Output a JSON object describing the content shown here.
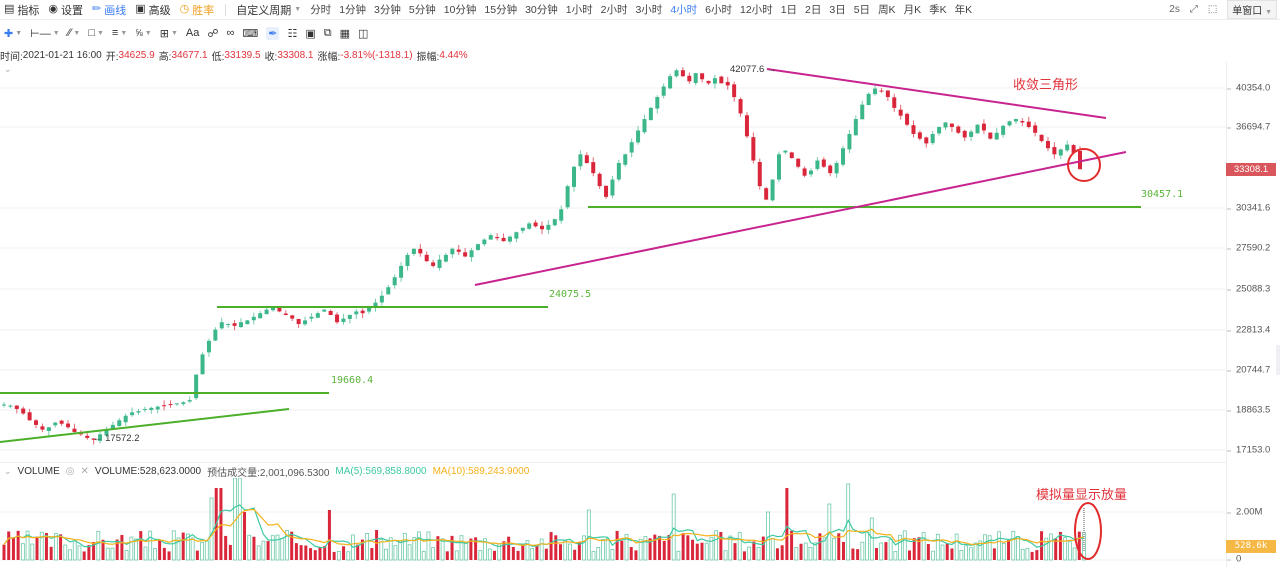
{
  "toolbar": {
    "indicators": "指标",
    "settings": "设置",
    "draw": "画线",
    "advanced": "高级",
    "winrate": "胜率",
    "custom_period": "自定义周期",
    "periods": [
      "分时",
      "1分钟",
      "3分钟",
      "5分钟",
      "10分钟",
      "15分钟",
      "30分钟",
      "1小时",
      "2小时",
      "3小时",
      "4小时",
      "6小时",
      "12小时",
      "1日",
      "2日",
      "3日",
      "5日",
      "周K",
      "月K",
      "季K",
      "年K"
    ],
    "active_period": "4小时",
    "refresh": "2s",
    "window_mode": "单窗口"
  },
  "drawing_tools": [
    "crosshair",
    "horizontal-segment",
    "trend-line",
    "rectangle",
    "parallel-lines",
    "fibonacci",
    "measure",
    "text",
    "link",
    "magnet",
    "ruler",
    "brush",
    "bar-pattern",
    "lock",
    "copy",
    "screenshot",
    "trash"
  ],
  "drawing_tools_text": {
    "text_tool": "Aa"
  },
  "info": {
    "time_label": "时间:",
    "time": "2021-01-21 16:00",
    "open_label": "开:",
    "open": "34625.9",
    "high_label": "高:",
    "high": "34677.1",
    "low_label": "低:",
    "low": "33139.5",
    "close_label": "收:",
    "close": "33308.1",
    "change_label": "涨幅:",
    "change": "-3.81%(-1318.1)",
    "amplitude_label": "振幅:",
    "amplitude": "4.44%"
  },
  "price_axis": {
    "ticks": [
      "40354.0",
      "36694.7",
      "30341.6",
      "27590.2",
      "25088.3",
      "22813.4",
      "20744.7",
      "18863.5",
      "17153.0"
    ],
    "current_price": "33308.1",
    "current_price_color": "#d9575c"
  },
  "chart_annotations": {
    "pattern_label": "收敛三角形",
    "volume_label": "模拟量显示放量",
    "high_marker": "42077.6",
    "low_marker": "17572.2",
    "levels": [
      "19660.4",
      "24075.5",
      "30457.1"
    ]
  },
  "volume": {
    "title": "VOLUME",
    "volume_text": "VOLUME:528,623.0000",
    "estimate_text": "预估成交量:2,001,096.5300",
    "ma5_text": "MA(5):569,858.8000",
    "ma10_text": "MA(10):589,243.9000",
    "axis": [
      "2.00M",
      "0"
    ],
    "current_tag": "528.6k"
  },
  "colors": {
    "up": "#3cb78a",
    "down": "#d9263a",
    "support_line": "#4caf2a",
    "triangle_line": "#c8248f",
    "annotation": "#e2333c",
    "active_blue": "#3b7cf0",
    "ma5": "#3cc9a2",
    "ma10": "#f5b11b"
  },
  "chart_data": {
    "type": "candlestick",
    "title": "BTC 4小时 K线",
    "close_path": [
      19100,
      19050,
      18900,
      18700,
      18400,
      18200,
      18000,
      18100,
      18300,
      18250,
      18100,
      17900,
      17800,
      17650,
      17572,
      17800,
      18000,
      18200,
      18400,
      18600,
      18750,
      18800,
      18900,
      18950,
      19000,
      19050,
      19100,
      19150,
      19200,
      19300,
      20500,
      21500,
      22200,
      22800,
      23200,
      23100,
      23000,
      23200,
      23300,
      23500,
      23700,
      23900,
      24000,
      23800,
      23600,
      23400,
      23100,
      23300,
      23500,
      23700,
      23900,
      23600,
      23200,
      23400,
      23600,
      23800,
      23700,
      24000,
      24300,
      24700,
      25200,
      25800,
      26500,
      27200,
      27600,
      27300,
      26800,
      26500,
      26900,
      27200,
      27600,
      27400,
      27100,
      27500,
      27900,
      28200,
      28500,
      28300,
      28100,
      28400,
      28700,
      29000,
      29300,
      29100,
      28900,
      29200,
      29600,
      30300,
      32000,
      33500,
      34500,
      33800,
      33000,
      32000,
      31200,
      32500,
      33800,
      34500,
      35500,
      36500,
      37500,
      38500,
      39500,
      40500,
      41500,
      42077,
      41500,
      41000,
      41800,
      41200,
      40800,
      41300,
      40800,
      40600,
      39500,
      38000,
      36000,
      34000,
      32000,
      31000,
      32500,
      34500,
      34800,
      34200,
      33500,
      32800,
      33200,
      34000,
      33500,
      33000,
      33800,
      35000,
      36200,
      37500,
      38800,
      39800,
      40300,
      40100,
      39500,
      38500,
      37800,
      37000,
      36200,
      35800,
      35400,
      36200,
      36800,
      37200,
      36800,
      36300,
      35900,
      36400,
      37000,
      36500,
      35800,
      36300,
      36900,
      37300,
      37500,
      37200,
      36800,
      36300,
      35600,
      35000,
      34500,
      34900,
      35300,
      34625,
      33308
    ],
    "ylim": [
      17153,
      42077.6
    ],
    "yticks": [
      40354.0,
      36694.7,
      30341.6,
      27590.2,
      25088.3,
      22813.4,
      20744.7,
      18863.5,
      17153.0
    ],
    "horizontal_levels": [
      19660.4,
      24075.5,
      30457.1
    ],
    "volume_ylim": [
      0,
      2000000
    ]
  }
}
